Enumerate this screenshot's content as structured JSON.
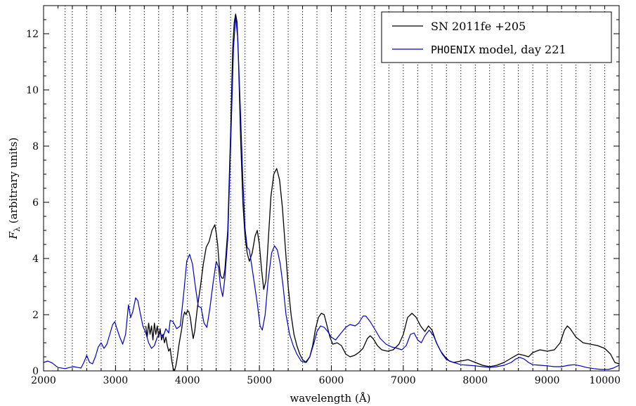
{
  "chart_data": {
    "type": "line",
    "xlabel": "wavelength (Å)",
    "ylabel_main": "F",
    "ylabel_sub": "λ",
    "ylabel_rest": " (arbitrary units)",
    "xlim": [
      2000,
      10000
    ],
    "ylim": [
      0,
      13
    ],
    "x_ticks": [
      2000,
      3000,
      4000,
      5000,
      6000,
      7000,
      8000,
      9000,
      10000
    ],
    "x_tick_labels": [
      "2000",
      "3000",
      "4000",
      "5000",
      "6000",
      "7000",
      "8000",
      "9000",
      "10000"
    ],
    "y_ticks": [
      0,
      2,
      4,
      6,
      8,
      10,
      12
    ],
    "y_tick_labels": [
      "0",
      "2",
      "4",
      "6",
      "8",
      "10",
      "12"
    ],
    "vertical_dotted_lines": [
      2300,
      2400,
      2600,
      2800,
      3000,
      3200,
      3400,
      3600,
      3800,
      4000,
      4200,
      4400,
      4600,
      4800,
      5000,
      5200,
      5400,
      5600,
      5800,
      6000,
      6200,
      6400,
      6600,
      6800,
      7000,
      7200,
      7400,
      7600,
      7800,
      8000,
      8200,
      8400,
      8600,
      8800,
      9000,
      9200,
      9400,
      9600,
      9800
    ],
    "legend_position": "top-right",
    "series": [
      {
        "name": "SN 2011fe +205",
        "legend_plain": "SN 2011fe +205",
        "color": "#000000",
        "points": [
          [
            3420,
            1.6
          ],
          [
            3440,
            1.2
          ],
          [
            3460,
            1.7
          ],
          [
            3480,
            1.3
          ],
          [
            3500,
            1.6
          ],
          [
            3520,
            1.1
          ],
          [
            3540,
            1.7
          ],
          [
            3560,
            1.3
          ],
          [
            3580,
            1.6
          ],
          [
            3600,
            1.2
          ],
          [
            3620,
            1.5
          ],
          [
            3640,
            1.1
          ],
          [
            3660,
            1.3
          ],
          [
            3680,
            1.0
          ],
          [
            3700,
            1.2
          ],
          [
            3720,
            0.9
          ],
          [
            3740,
            0.7
          ],
          [
            3760,
            0.8
          ],
          [
            3780,
            0.4
          ],
          [
            3800,
            0.1
          ],
          [
            3820,
            0.0
          ],
          [
            3840,
            0.2
          ],
          [
            3860,
            0.5
          ],
          [
            3880,
            0.9
          ],
          [
            3900,
            1.2
          ],
          [
            3920,
            1.5
          ],
          [
            3940,
            1.9
          ],
          [
            3960,
            2.1
          ],
          [
            3980,
            2.0
          ],
          [
            4000,
            2.15
          ],
          [
            4020,
            2.1
          ],
          [
            4040,
            1.9
          ],
          [
            4060,
            1.5
          ],
          [
            4080,
            1.15
          ],
          [
            4100,
            1.4
          ],
          [
            4140,
            2.3
          ],
          [
            4180,
            3.0
          ],
          [
            4220,
            3.8
          ],
          [
            4260,
            4.4
          ],
          [
            4300,
            4.6
          ],
          [
            4340,
            5.0
          ],
          [
            4380,
            5.2
          ],
          [
            4400,
            4.9
          ],
          [
            4420,
            4.5
          ],
          [
            4440,
            3.8
          ],
          [
            4460,
            3.4
          ],
          [
            4480,
            3.3
          ],
          [
            4500,
            3.3
          ],
          [
            4520,
            3.6
          ],
          [
            4560,
            5.0
          ],
          [
            4600,
            8.5
          ],
          [
            4630,
            11.5
          ],
          [
            4650,
            12.4
          ],
          [
            4670,
            12.7
          ],
          [
            4690,
            12.4
          ],
          [
            4710,
            11.0
          ],
          [
            4740,
            8.2
          ],
          [
            4770,
            6.0
          ],
          [
            4800,
            4.8
          ],
          [
            4830,
            4.2
          ],
          [
            4860,
            3.9
          ],
          [
            4900,
            4.2
          ],
          [
            4940,
            4.8
          ],
          [
            4970,
            5.0
          ],
          [
            5000,
            4.5
          ],
          [
            5030,
            3.6
          ],
          [
            5060,
            2.9
          ],
          [
            5090,
            3.2
          ],
          [
            5120,
            4.5
          ],
          [
            5160,
            6.2
          ],
          [
            5200,
            7.0
          ],
          [
            5240,
            7.2
          ],
          [
            5280,
            6.8
          ],
          [
            5320,
            5.8
          ],
          [
            5360,
            4.4
          ],
          [
            5400,
            3.0
          ],
          [
            5440,
            2.0
          ],
          [
            5480,
            1.3
          ],
          [
            5520,
            0.9
          ],
          [
            5560,
            0.6
          ],
          [
            5600,
            0.4
          ],
          [
            5650,
            0.3
          ],
          [
            5700,
            0.5
          ],
          [
            5740,
            0.9
          ],
          [
            5780,
            1.5
          ],
          [
            5820,
            1.9
          ],
          [
            5860,
            2.05
          ],
          [
            5900,
            2.0
          ],
          [
            5940,
            1.6
          ],
          [
            5980,
            1.2
          ],
          [
            6020,
            0.95
          ],
          [
            6080,
            1.0
          ],
          [
            6140,
            0.9
          ],
          [
            6200,
            0.6
          ],
          [
            6260,
            0.5
          ],
          [
            6320,
            0.55
          ],
          [
            6380,
            0.65
          ],
          [
            6440,
            0.8
          ],
          [
            6500,
            1.15
          ],
          [
            6540,
            1.25
          ],
          [
            6580,
            1.15
          ],
          [
            6640,
            0.9
          ],
          [
            6700,
            0.75
          ],
          [
            6780,
            0.7
          ],
          [
            6860,
            0.75
          ],
          [
            6940,
            0.95
          ],
          [
            7000,
            1.3
          ],
          [
            7060,
            1.9
          ],
          [
            7120,
            2.05
          ],
          [
            7180,
            1.9
          ],
          [
            7240,
            1.6
          ],
          [
            7300,
            1.4
          ],
          [
            7350,
            1.6
          ],
          [
            7400,
            1.45
          ],
          [
            7460,
            1.0
          ],
          [
            7520,
            0.7
          ],
          [
            7580,
            0.5
          ],
          [
            7640,
            0.35
          ],
          [
            7700,
            0.3
          ],
          [
            7800,
            0.35
          ],
          [
            7900,
            0.4
          ],
          [
            8000,
            0.3
          ],
          [
            8100,
            0.2
          ],
          [
            8200,
            0.15
          ],
          [
            8300,
            0.2
          ],
          [
            8400,
            0.3
          ],
          [
            8500,
            0.45
          ],
          [
            8600,
            0.6
          ],
          [
            8680,
            0.55
          ],
          [
            8740,
            0.5
          ],
          [
            8800,
            0.65
          ],
          [
            8900,
            0.75
          ],
          [
            9000,
            0.7
          ],
          [
            9100,
            0.75
          ],
          [
            9180,
            1.0
          ],
          [
            9240,
            1.45
          ],
          [
            9280,
            1.6
          ],
          [
            9320,
            1.5
          ],
          [
            9400,
            1.2
          ],
          [
            9500,
            1.0
          ],
          [
            9600,
            0.95
          ],
          [
            9700,
            0.9
          ],
          [
            9800,
            0.8
          ],
          [
            9880,
            0.6
          ],
          [
            9940,
            0.3
          ],
          [
            10000,
            0.25
          ]
        ]
      },
      {
        "name": "PHOENIX model, day 221",
        "legend_mono": "PHOENIX",
        "legend_rest": " model, day 221",
        "color": "#0000cc",
        "points": [
          [
            2000,
            0.3
          ],
          [
            2060,
            0.35
          ],
          [
            2120,
            0.28
          ],
          [
            2200,
            0.12
          ],
          [
            2300,
            0.08
          ],
          [
            2360,
            0.12
          ],
          [
            2420,
            0.15
          ],
          [
            2480,
            0.12
          ],
          [
            2520,
            0.1
          ],
          [
            2560,
            0.3
          ],
          [
            2600,
            0.55
          ],
          [
            2640,
            0.3
          ],
          [
            2680,
            0.25
          ],
          [
            2720,
            0.5
          ],
          [
            2760,
            0.85
          ],
          [
            2800,
            1.0
          ],
          [
            2840,
            0.8
          ],
          [
            2880,
            0.95
          ],
          [
            2920,
            1.3
          ],
          [
            2960,
            1.65
          ],
          [
            2990,
            1.75
          ],
          [
            3020,
            1.5
          ],
          [
            3060,
            1.2
          ],
          [
            3100,
            0.95
          ],
          [
            3140,
            1.3
          ],
          [
            3180,
            2.35
          ],
          [
            3210,
            1.9
          ],
          [
            3240,
            2.1
          ],
          [
            3280,
            2.6
          ],
          [
            3310,
            2.5
          ],
          [
            3340,
            2.1
          ],
          [
            3380,
            1.6
          ],
          [
            3420,
            1.35
          ],
          [
            3460,
            1.0
          ],
          [
            3500,
            0.8
          ],
          [
            3540,
            0.9
          ],
          [
            3580,
            1.2
          ],
          [
            3620,
            1.35
          ],
          [
            3660,
            1.2
          ],
          [
            3700,
            1.5
          ],
          [
            3740,
            1.35
          ],
          [
            3760,
            1.8
          ],
          [
            3800,
            1.75
          ],
          [
            3850,
            1.5
          ],
          [
            3900,
            1.6
          ],
          [
            3950,
            2.8
          ],
          [
            3990,
            3.9
          ],
          [
            4030,
            4.15
          ],
          [
            4070,
            3.8
          ],
          [
            4110,
            3.0
          ],
          [
            4150,
            2.3
          ],
          [
            4190,
            2.25
          ],
          [
            4230,
            1.7
          ],
          [
            4270,
            1.55
          ],
          [
            4310,
            2.2
          ],
          [
            4360,
            3.2
          ],
          [
            4400,
            3.9
          ],
          [
            4430,
            3.7
          ],
          [
            4460,
            3.0
          ],
          [
            4490,
            2.65
          ],
          [
            4520,
            3.3
          ],
          [
            4560,
            4.7
          ],
          [
            4600,
            8.0
          ],
          [
            4640,
            11.5
          ],
          [
            4670,
            12.6
          ],
          [
            4700,
            11.8
          ],
          [
            4740,
            9.0
          ],
          [
            4770,
            6.8
          ],
          [
            4800,
            5.1
          ],
          [
            4830,
            4.4
          ],
          [
            4860,
            4.3
          ],
          [
            4890,
            3.8
          ],
          [
            4930,
            3.1
          ],
          [
            4970,
            2.4
          ],
          [
            5010,
            1.6
          ],
          [
            5040,
            1.45
          ],
          [
            5080,
            2.0
          ],
          [
            5120,
            3.2
          ],
          [
            5170,
            4.2
          ],
          [
            5210,
            4.45
          ],
          [
            5250,
            4.3
          ],
          [
            5290,
            3.8
          ],
          [
            5330,
            3.0
          ],
          [
            5370,
            2.0
          ],
          [
            5420,
            1.3
          ],
          [
            5470,
            0.9
          ],
          [
            5520,
            0.6
          ],
          [
            5580,
            0.35
          ],
          [
            5640,
            0.3
          ],
          [
            5700,
            0.5
          ],
          [
            5760,
            1.0
          ],
          [
            5800,
            1.4
          ],
          [
            5850,
            1.6
          ],
          [
            5900,
            1.55
          ],
          [
            5950,
            1.4
          ],
          [
            6000,
            1.2
          ],
          [
            6060,
            1.1
          ],
          [
            6120,
            1.3
          ],
          [
            6200,
            1.55
          ],
          [
            6260,
            1.65
          ],
          [
            6330,
            1.6
          ],
          [
            6380,
            1.7
          ],
          [
            6440,
            1.95
          ],
          [
            6480,
            1.95
          ],
          [
            6540,
            1.75
          ],
          [
            6600,
            1.5
          ],
          [
            6680,
            1.15
          ],
          [
            6760,
            0.95
          ],
          [
            6840,
            0.85
          ],
          [
            6920,
            0.8
          ],
          [
            6980,
            0.75
          ],
          [
            7040,
            0.9
          ],
          [
            7100,
            1.3
          ],
          [
            7150,
            1.35
          ],
          [
            7200,
            1.1
          ],
          [
            7250,
            1.0
          ],
          [
            7300,
            1.25
          ],
          [
            7360,
            1.45
          ],
          [
            7420,
            1.25
          ],
          [
            7480,
            0.9
          ],
          [
            7540,
            0.6
          ],
          [
            7600,
            0.4
          ],
          [
            7700,
            0.3
          ],
          [
            7800,
            0.22
          ],
          [
            7900,
            0.2
          ],
          [
            8000,
            0.18
          ],
          [
            8100,
            0.15
          ],
          [
            8200,
            0.12
          ],
          [
            8300,
            0.15
          ],
          [
            8400,
            0.2
          ],
          [
            8500,
            0.3
          ],
          [
            8560,
            0.42
          ],
          [
            8620,
            0.48
          ],
          [
            8680,
            0.42
          ],
          [
            8740,
            0.3
          ],
          [
            8800,
            0.22
          ],
          [
            8900,
            0.2
          ],
          [
            9000,
            0.18
          ],
          [
            9100,
            0.15
          ],
          [
            9200,
            0.15
          ],
          [
            9300,
            0.2
          ],
          [
            9380,
            0.22
          ],
          [
            9460,
            0.18
          ],
          [
            9550,
            0.12
          ],
          [
            9650,
            0.08
          ],
          [
            9750,
            0.05
          ],
          [
            9850,
            0.05
          ],
          [
            9920,
            0.1
          ],
          [
            10000,
            0.2
          ]
        ]
      }
    ]
  }
}
